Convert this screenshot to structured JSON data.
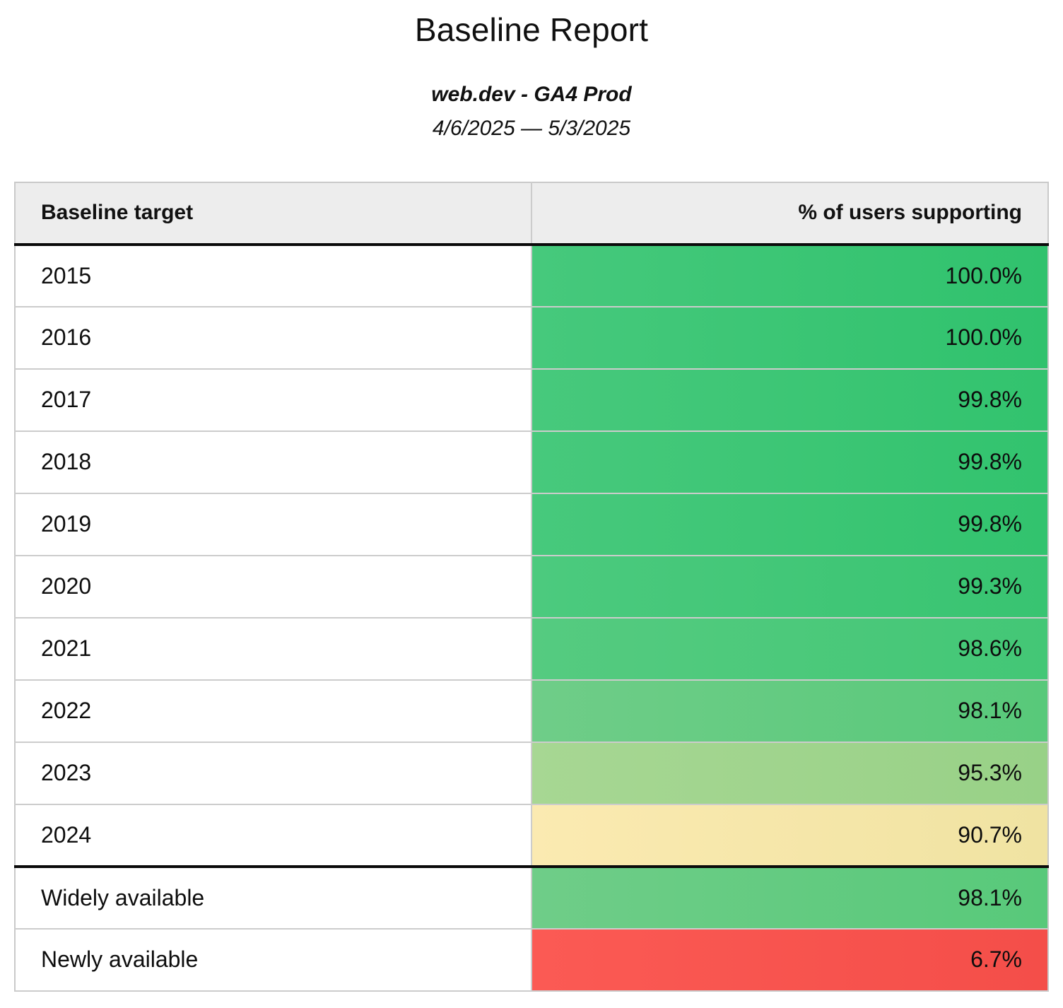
{
  "page": {
    "title": "Baseline Report",
    "subtitle": "web.dev - GA4 Prod",
    "date_range": "4/6/2025 — 5/3/2025"
  },
  "table": {
    "columns": {
      "target": "Baseline target",
      "support": "% of users supporting"
    },
    "rows": [
      {
        "target": "2015",
        "value": "100.0%",
        "bg": [
          "#46c97c",
          "#30c26d"
        ]
      },
      {
        "target": "2016",
        "value": "100.0%",
        "bg": [
          "#46c97c",
          "#30c26d"
        ]
      },
      {
        "target": "2017",
        "value": "99.8%",
        "bg": [
          "#47c97c",
          "#32c36e"
        ]
      },
      {
        "target": "2018",
        "value": "99.8%",
        "bg": [
          "#47c97c",
          "#32c36e"
        ]
      },
      {
        "target": "2019",
        "value": "99.8%",
        "bg": [
          "#47c97c",
          "#32c36e"
        ]
      },
      {
        "target": "2020",
        "value": "99.3%",
        "bg": [
          "#4cca7e",
          "#38c471"
        ]
      },
      {
        "target": "2021",
        "value": "98.6%",
        "bg": [
          "#55cb80",
          "#43c776"
        ]
      },
      {
        "target": "2022",
        "value": "98.1%",
        "bg": [
          "#6fcd88",
          "#58c97a"
        ]
      },
      {
        "target": "2023",
        "value": "95.3%",
        "bg": [
          "#a7d793",
          "#98d187"
        ]
      },
      {
        "target": "2024",
        "value": "90.7%",
        "bg": [
          "#fbeab1",
          "#f0e3a2"
        ]
      },
      {
        "target": "Widely available",
        "value": "98.1%",
        "bg": [
          "#6fcd88",
          "#58c97a"
        ]
      },
      {
        "target": "Newly available",
        "value": "6.7%",
        "bg": [
          "#fb5a54",
          "#f44e49"
        ]
      }
    ]
  },
  "colors": {
    "header_bg": "#ededed",
    "row_border": "#cccccc",
    "group_border": "#0a0a0a",
    "outer_border": "#c9c9c9",
    "text": "#101010"
  },
  "chart_data": {
    "type": "table",
    "title": "Baseline Report",
    "subtitle": "web.dev - GA4 Prod",
    "date_range": "4/6/2025 — 5/3/2025",
    "columns": [
      "Baseline target",
      "% of users supporting"
    ],
    "categories": [
      "2015",
      "2016",
      "2017",
      "2018",
      "2019",
      "2020",
      "2021",
      "2022",
      "2023",
      "2024",
      "Widely available",
      "Newly available"
    ],
    "values": [
      100.0,
      100.0,
      99.8,
      99.8,
      99.8,
      99.3,
      98.6,
      98.1,
      95.3,
      90.7,
      98.1,
      6.7
    ],
    "value_format": "percent",
    "layout_hints": {
      "value_column_coloring": "heatmap green (high) to yellow (mid) to red (low)",
      "group_separator_after_row": "2024"
    }
  }
}
